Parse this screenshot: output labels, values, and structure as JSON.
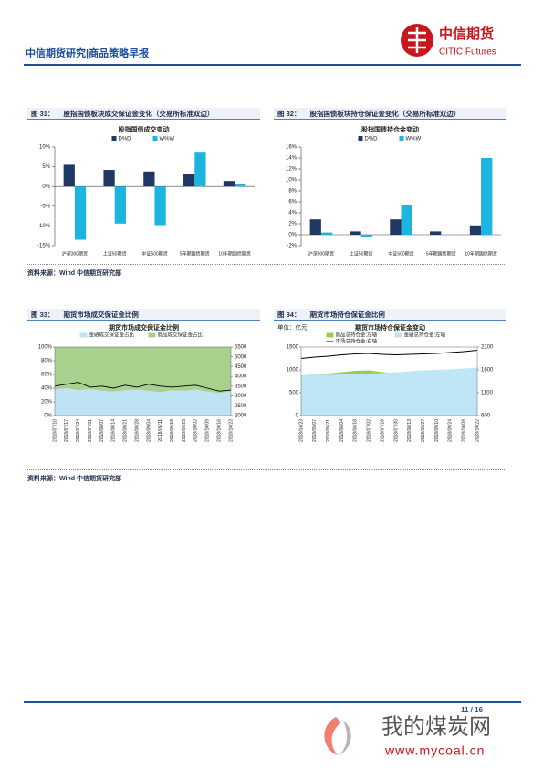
{
  "header": {
    "title": "中信期货研究|商品策略早报",
    "logo_cn": "中信期货",
    "logo_en": "CITIC Futures"
  },
  "figures": [
    {
      "number": "图 31：",
      "caption": "股指国债板块成交保证金变化（交易所标准双边）"
    },
    {
      "number": "图 32：",
      "caption": "股指国债板块持仓保证金变化（交易所标准双边）"
    },
    {
      "number": "图 33：",
      "caption": "期货市场成交保证金比例"
    },
    {
      "number": "图 34：",
      "caption": "期货市场持仓保证金比例"
    }
  ],
  "sources": [
    "资料来源：Wind  中信期货研究部",
    "资料来源：Wind  中信期货研究部"
  ],
  "chart_data": [
    {
      "type": "bar",
      "title": "股指国债成交变动",
      "categories": [
        "沪深300期货",
        "上证50期货",
        "中证500期货",
        "5年期国债期货",
        "10年期国债期货"
      ],
      "series": [
        {
          "name": "D%D",
          "color": "#1f3864",
          "values": [
            5.5,
            4.2,
            3.8,
            3.1,
            1.4
          ]
        },
        {
          "name": "W%W",
          "color": "#1cb5e0",
          "values": [
            -13.5,
            -9.4,
            -9.8,
            8.8,
            0.6
          ]
        }
      ],
      "ylim": [
        -15,
        10
      ],
      "yticks": [
        {
          "value": -15,
          "label": "-15%"
        },
        {
          "value": -10,
          "label": "-10%"
        },
        {
          "value": -5,
          "label": "-5%"
        },
        {
          "value": 0,
          "label": "0%"
        },
        {
          "value": 5,
          "label": "5%"
        },
        {
          "value": 10,
          "label": "10%"
        }
      ]
    },
    {
      "type": "bar",
      "title": "股指国债持仓金变动",
      "categories": [
        "沪深300期货",
        "上证50期货",
        "中证500期货",
        "5年期国债期货",
        "10年期国债期货"
      ],
      "series": [
        {
          "name": "D%D",
          "color": "#1f3864",
          "values": [
            2.8,
            0.6,
            2.8,
            0.6,
            1.7
          ]
        },
        {
          "name": "W%W",
          "color": "#1cb5e0",
          "values": [
            0.4,
            -0.4,
            5.4,
            0,
            14.0
          ]
        }
      ],
      "ylim": [
        -2,
        16
      ],
      "yticks": [
        {
          "value": -2,
          "label": "-2%"
        },
        {
          "value": 0,
          "label": "0%"
        },
        {
          "value": 2,
          "label": "2%"
        },
        {
          "value": 4,
          "label": "4%"
        },
        {
          "value": 6,
          "label": "6%"
        },
        {
          "value": 8,
          "label": "8%"
        },
        {
          "value": 10,
          "label": "10%"
        },
        {
          "value": 12,
          "label": "12%"
        },
        {
          "value": 14,
          "label": "14%"
        },
        {
          "value": 16,
          "label": "16%"
        }
      ]
    },
    {
      "type": "area",
      "title": "期货市场成交保证金比例",
      "stacked": true,
      "categories": [
        "2018/07/10",
        "2018/07/17",
        "2018/07/24",
        "2018/07/31",
        "2018/08/07",
        "2018/08/14",
        "2018/08/21",
        "2018/08/28",
        "2018/09/04",
        "2018/09/11",
        "2018/09/18",
        "2018/09/25",
        "2018/10/02",
        "2018/10/09",
        "2018/10/16",
        "2018/10/23"
      ],
      "series": [
        {
          "name": "金融成交保证金占比",
          "color": "#bde3f5",
          "values": [
            38,
            40,
            37,
            39,
            36,
            35,
            37,
            38,
            36,
            34,
            37,
            36,
            38,
            35,
            33,
            36
          ]
        },
        {
          "name": "商品成交保证金占比",
          "color": "#a9d18e",
          "values": [
            62,
            60,
            63,
            61,
            64,
            65,
            63,
            62,
            64,
            66,
            63,
            64,
            62,
            65,
            67,
            64
          ]
        },
        {
          "color": "#000000",
          "axis": "y2",
          "values": [
            3500,
            3600,
            3700,
            3450,
            3500,
            3400,
            3550,
            3450,
            3600,
            3500,
            3450,
            3500,
            3550,
            3400,
            3250,
            3300
          ]
        }
      ],
      "ylim": [
        0,
        100
      ],
      "yticks": [
        {
          "value": 0,
          "label": "0%"
        },
        {
          "value": 20,
          "label": "20%"
        },
        {
          "value": 40,
          "label": "40%"
        },
        {
          "value": 60,
          "label": "60%"
        },
        {
          "value": 80,
          "label": "80%"
        },
        {
          "value": 100,
          "label": "100%"
        }
      ],
      "y2lim": [
        2000,
        5500
      ],
      "y2ticks": [
        2000,
        2500,
        3000,
        3500,
        4000,
        4500,
        5000,
        5500
      ]
    },
    {
      "type": "area",
      "title": "期货市场持仓保证金变动",
      "unit": "单位：亿元",
      "stacked": false,
      "categories": [
        "2018/04/23",
        "2018/05/07",
        "2018/05/21",
        "2018/06/04",
        "2018/06/18",
        "2018/07/02",
        "2018/07/16",
        "2018/07/30",
        "2018/08/13",
        "2018/08/27",
        "2018/09/10",
        "2018/09/24",
        "2018/10/08",
        "2018/10/22"
      ],
      "series": [
        {
          "name": "商品总持仓金:左轴",
          "color": "#92d050",
          "values": [
            880,
            900,
            920,
            950,
            980,
            990,
            950,
            920,
            900,
            910,
            920,
            930,
            940,
            950
          ]
        },
        {
          "name": "金融总持仓金:左轴",
          "color": "#bfe6f7",
          "values": [
            880,
            900,
            890,
            900,
            910,
            920,
            930,
            950,
            970,
            990,
            1000,
            1010,
            1030,
            1050
          ]
        },
        {
          "name": "市场总持仓金:右轴",
          "color": "#000000",
          "axis": "y2",
          "values": [
            1850,
            1880,
            1900,
            1930,
            1950,
            1960,
            1940,
            1930,
            1940,
            1950,
            1960,
            1980,
            2000,
            2030
          ]
        }
      ],
      "ylim": [
        0,
        1500
      ],
      "yticks": [
        0,
        500,
        1000,
        1500
      ],
      "y2lim": [
        600,
        2100
      ],
      "y2ticks": [
        600,
        1100,
        1600,
        2100
      ]
    }
  ],
  "footer": {
    "page": "11 / 16"
  },
  "watermark": {
    "cn": "我的煤炭网",
    "url": "www.mycoal.cn"
  }
}
